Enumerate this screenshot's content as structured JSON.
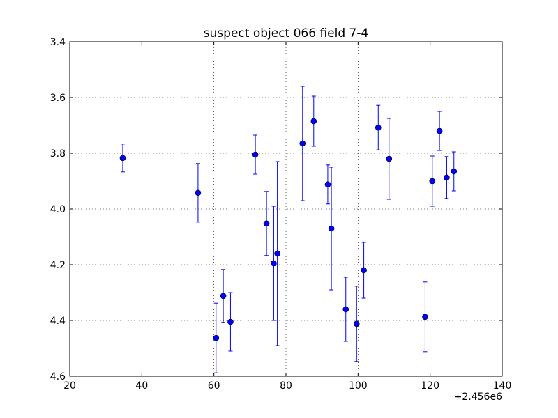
{
  "chart_data": {
    "type": "scatter",
    "title": "suspect object 066 field 7-4",
    "xlabel": "",
    "ylabel": "",
    "x_offset_label": "+2.456e6",
    "xlim": [
      20,
      140
    ],
    "ylim": [
      3.4,
      4.6
    ],
    "y_inverted": true,
    "x_ticks": [
      20,
      40,
      60,
      80,
      100,
      120,
      140
    ],
    "y_ticks": [
      3.4,
      3.6,
      3.8,
      4.0,
      4.2,
      4.4,
      4.6
    ],
    "x_tick_labels": [
      "20",
      "40",
      "60",
      "80",
      "100",
      "120",
      "140"
    ],
    "y_tick_labels": [
      "3.4",
      "3.6",
      "3.8",
      "4.0",
      "4.2",
      "4.4",
      "4.6"
    ],
    "grid": true,
    "marker_color": "#0000ff",
    "series": [
      {
        "points": [
          {
            "x": 34.7,
            "y": 3.817,
            "err": 0.05
          },
          {
            "x": 55.6,
            "y": 3.942,
            "err": 0.105
          },
          {
            "x": 60.6,
            "y": 4.463,
            "err": 0.125
          },
          {
            "x": 62.6,
            "y": 4.312,
            "err": 0.095
          },
          {
            "x": 64.6,
            "y": 4.405,
            "err": 0.105
          },
          {
            "x": 71.5,
            "y": 3.805,
            "err": 0.07
          },
          {
            "x": 74.6,
            "y": 4.052,
            "err": 0.115
          },
          {
            "x": 76.6,
            "y": 4.195,
            "err": 0.205
          },
          {
            "x": 77.6,
            "y": 4.16,
            "err": 0.33
          },
          {
            "x": 84.6,
            "y": 3.765,
            "err": 0.205
          },
          {
            "x": 87.7,
            "y": 3.685,
            "err": 0.09
          },
          {
            "x": 91.6,
            "y": 3.912,
            "err": 0.07
          },
          {
            "x": 92.6,
            "y": 4.07,
            "err": 0.22
          },
          {
            "x": 96.6,
            "y": 4.36,
            "err": 0.115
          },
          {
            "x": 99.6,
            "y": 4.412,
            "err": 0.135
          },
          {
            "x": 101.6,
            "y": 4.22,
            "err": 0.1
          },
          {
            "x": 105.6,
            "y": 3.708,
            "err": 0.08
          },
          {
            "x": 108.6,
            "y": 3.82,
            "err": 0.145
          },
          {
            "x": 118.6,
            "y": 4.387,
            "err": 0.125
          },
          {
            "x": 120.6,
            "y": 3.9,
            "err": 0.09
          },
          {
            "x": 122.6,
            "y": 3.72,
            "err": 0.07
          },
          {
            "x": 124.6,
            "y": 3.887,
            "err": 0.075
          },
          {
            "x": 126.6,
            "y": 3.865,
            "err": 0.07
          }
        ]
      }
    ]
  }
}
